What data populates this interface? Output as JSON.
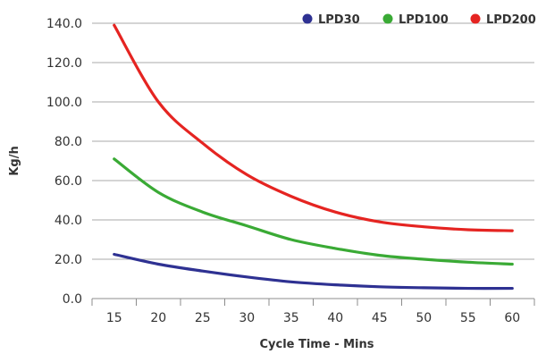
{
  "chart_data": {
    "type": "line",
    "xlabel": "Cycle Time - Mins",
    "ylabel": "Kg/h",
    "x": [
      15,
      20,
      25,
      30,
      35,
      40,
      45,
      50,
      55,
      60
    ],
    "xlim": [
      12.5,
      62.5
    ],
    "ylim": [
      0,
      140
    ],
    "y_ticks": [
      "0.0",
      "20.0",
      "40.0",
      "60.0",
      "80.0",
      "100.0",
      "120.0",
      "140.0"
    ],
    "x_ticks": [
      "15",
      "20",
      "25",
      "30",
      "35",
      "40",
      "45",
      "50",
      "55",
      "60"
    ],
    "grid": "horizontal",
    "legend_position": "top-right",
    "series": [
      {
        "name": "LPD30",
        "color": "#2e3192",
        "values": [
          22.5,
          17.5,
          14,
          11,
          8.5,
          7,
          6,
          5.5,
          5.2,
          5.2
        ]
      },
      {
        "name": "LPD100",
        "color": "#3aaa35",
        "values": [
          71,
          54,
          44,
          37,
          30,
          25.5,
          22,
          20,
          18.5,
          17.5
        ]
      },
      {
        "name": "LPD200",
        "color": "#e52421",
        "values": [
          139,
          100,
          79,
          63,
          52,
          44,
          39,
          36.5,
          35,
          34.5
        ]
      }
    ]
  }
}
